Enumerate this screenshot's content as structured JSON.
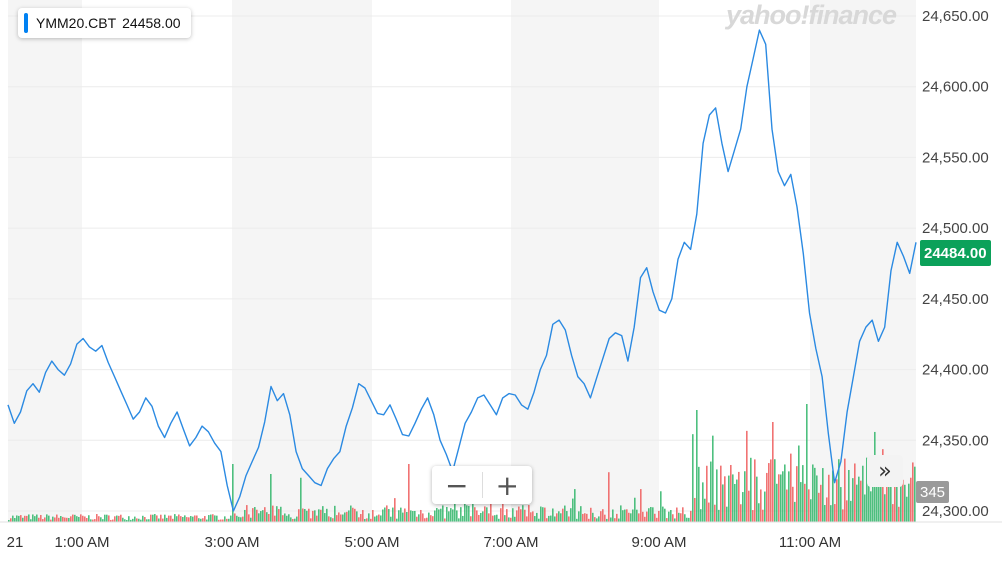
{
  "legend": {
    "symbol": "YMM20.CBT",
    "value": "24458.00"
  },
  "watermark": "yahoo!finance",
  "price_tag": "24484.00",
  "volume_tag": "345",
  "zoom": {
    "minus": "−",
    "plus": "+"
  },
  "scroll_label": "»",
  "colors": {
    "line": "#2b8ae2",
    "up": "#2fb569",
    "down": "#ef5a5a",
    "band": "#f5f5f5",
    "grid": "#ececec",
    "price_tag": "#0ba15a"
  },
  "chart_data": {
    "type": "line",
    "series": [
      {
        "values": [
          24375,
          24362,
          24370,
          24385,
          24390,
          24384,
          24398,
          24406,
          24400,
          24396,
          24404,
          24418,
          24422,
          24416,
          24413,
          24417,
          24405,
          24395,
          24385,
          24375,
          24365,
          24370,
          24380,
          24374,
          24360,
          24352,
          24362,
          24370,
          24358,
          24346,
          24352,
          24360,
          24356,
          24348,
          24342,
          24318,
          24300,
          24310,
          24325,
          24335,
          24345,
          24363,
          24388,
          24378,
          24383,
          24368,
          24342,
          24330,
          24325,
          24320,
          24318,
          24330,
          24337,
          24342,
          24360,
          24373,
          24390,
          24387,
          24378,
          24369,
          24368,
          24375,
          24365,
          24354,
          24353,
          24362,
          24372,
          24380,
          24368,
          24350,
          24340,
          24328,
          24345,
          24362,
          24370,
          24380,
          24382,
          24375,
          24368,
          24380,
          24383,
          24382,
          24375,
          24372,
          24384,
          24400,
          24410,
          24432,
          24435,
          24428,
          24410,
          24395,
          24390,
          24380,
          24394,
          24408,
          24422,
          24426,
          24424,
          24406,
          24430,
          24465,
          24472,
          24455,
          24442,
          24440,
          24450,
          24478,
          24490,
          24485,
          24510,
          24560,
          24580,
          24585,
          24560,
          24540,
          24555,
          24570,
          24600,
          24620,
          24640,
          24630,
          24570,
          24540,
          24530,
          24538,
          24515,
          24482,
          24440,
          24415,
          24395,
          24355,
          24320,
          24335,
          24370,
          24395,
          24420,
          24430,
          24435,
          24420,
          24430,
          24470,
          24490,
          24480,
          24468,
          24490
        ]
      }
    ],
    "x_ticks": [
      "21",
      "1:00 AM",
      "3:00 AM",
      "5:00 AM",
      "7:00 AM",
      "9:00 AM",
      "11:00 AM"
    ],
    "y_ticks": [
      "24,300.00",
      "24,350.00",
      "24,400.00",
      "24,450.00",
      "24,500.00",
      "24,550.00",
      "24,600.00",
      "24,650.00"
    ],
    "ylim": [
      24292,
      24660
    ],
    "grid": true,
    "volume": {
      "max": 160
    }
  }
}
